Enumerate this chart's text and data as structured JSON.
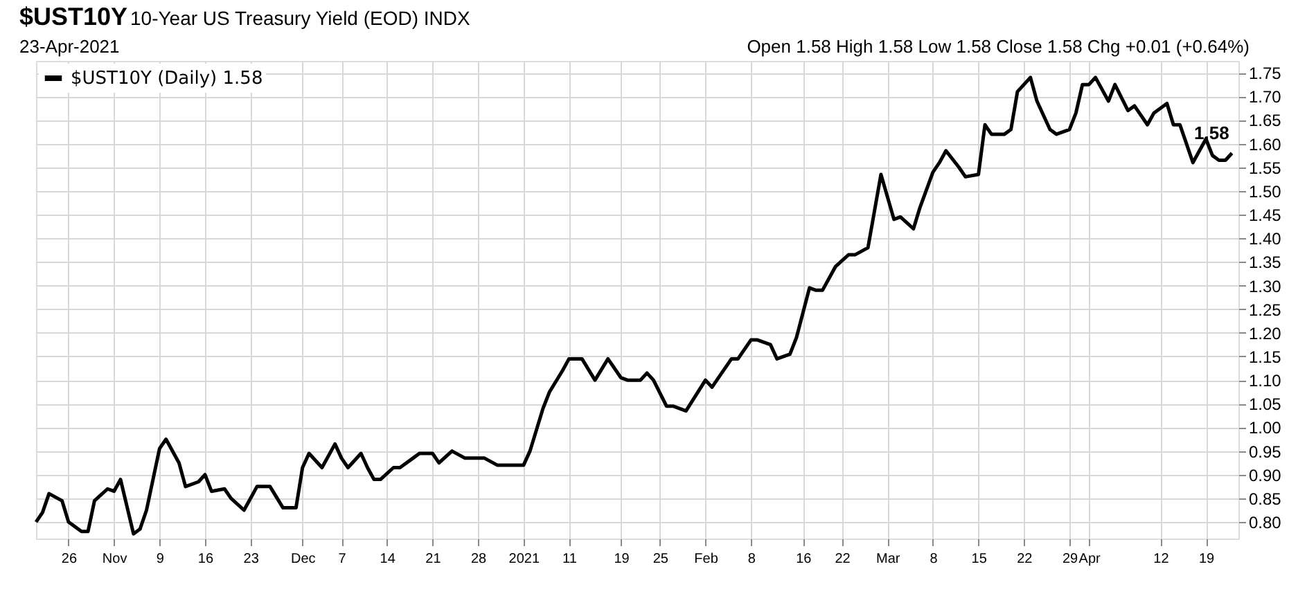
{
  "chart_data": {
    "type": "line",
    "title": "$UST10Y",
    "subtitle": "10-Year US Treasury Yield (EOD) INDX",
    "annotations": [
      "23-Apr-2021",
      "Open 1.58  High 1.58  Low 1.58  Close 1.58  Chg +0.01 (+0.64%)",
      {
        "text": "1.58",
        "x": "2021-04-23",
        "y": 1.58
      }
    ],
    "x": [
      "2020-10-21",
      "2020-10-22",
      "2020-10-23",
      "2020-10-25",
      "2020-10-26",
      "2020-10-28",
      "2020-10-29",
      "2020-10-30",
      "2020-11-01",
      "2020-11-02",
      "2020-11-03",
      "2020-11-05",
      "2020-11-06",
      "2020-11-07",
      "2020-11-09",
      "2020-11-10",
      "2020-11-12",
      "2020-11-13",
      "2020-11-15",
      "2020-11-16",
      "2020-11-17",
      "2020-11-19",
      "2020-11-20",
      "2020-11-22",
      "2020-11-23",
      "2020-11-24",
      "2020-11-26",
      "2020-11-28",
      "2020-11-30",
      "2020-12-01",
      "2020-12-02",
      "2020-12-04",
      "2020-12-06",
      "2020-12-07",
      "2020-12-08",
      "2020-12-10",
      "2020-12-11",
      "2020-12-12",
      "2020-12-13",
      "2020-12-15",
      "2020-12-16",
      "2020-12-18",
      "2020-12-19",
      "2020-12-21",
      "2020-12-22",
      "2020-12-24",
      "2020-12-26",
      "2020-12-29",
      "2020-12-31",
      "2021-01-04",
      "2021-01-05",
      "2021-01-07",
      "2021-01-08",
      "2021-01-10",
      "2021-01-11",
      "2021-01-13",
      "2021-01-15",
      "2021-01-17",
      "2021-01-19",
      "2021-01-20",
      "2021-01-22",
      "2021-01-23",
      "2021-01-24",
      "2021-01-26",
      "2021-01-27",
      "2021-01-29",
      "2021-02-01",
      "2021-02-02",
      "2021-02-05",
      "2021-02-06",
      "2021-02-08",
      "2021-02-09",
      "2021-02-11",
      "2021-02-12",
      "2021-02-14",
      "2021-02-15",
      "2021-02-17",
      "2021-02-18",
      "2021-02-19",
      "2021-02-21",
      "2021-02-23",
      "2021-02-24",
      "2021-02-26",
      "2021-02-28",
      "2021-03-02",
      "2021-03-03",
      "2021-03-05",
      "2021-03-06",
      "2021-03-08",
      "2021-03-09",
      "2021-03-10",
      "2021-03-12",
      "2021-03-13",
      "2021-03-15",
      "2021-03-16",
      "2021-03-17",
      "2021-03-19",
      "2021-03-20",
      "2021-03-21",
      "2021-03-23",
      "2021-03-24",
      "2021-03-26",
      "2021-03-27",
      "2021-03-29",
      "2021-03-30",
      "2021-03-31",
      "2021-04-01",
      "2021-04-02",
      "2021-04-04",
      "2021-04-05",
      "2021-04-07",
      "2021-04-08",
      "2021-04-10",
      "2021-04-11",
      "2021-04-13",
      "2021-04-14",
      "2021-04-15",
      "2021-04-17",
      "2021-04-18",
      "2021-04-19",
      "2021-04-20",
      "2021-04-21",
      "2021-04-22",
      "2021-04-23"
    ],
    "series": [
      {
        "name": "$UST10Y (Daily) 1.58",
        "color": "#000000",
        "values": [
          0.8,
          0.82,
          0.86,
          0.845,
          0.8,
          0.78,
          0.78,
          0.845,
          0.87,
          0.865,
          0.89,
          0.775,
          0.785,
          0.825,
          0.955,
          0.975,
          0.925,
          0.875,
          0.885,
          0.9,
          0.865,
          0.87,
          0.85,
          0.825,
          0.85,
          0.875,
          0.875,
          0.83,
          0.83,
          0.915,
          0.945,
          0.915,
          0.965,
          0.935,
          0.915,
          0.945,
          0.915,
          0.89,
          0.89,
          0.915,
          0.915,
          0.935,
          0.945,
          0.945,
          0.925,
          0.95,
          0.935,
          0.935,
          0.92,
          0.92,
          0.95,
          1.04,
          1.075,
          1.12,
          1.145,
          1.145,
          1.1,
          1.145,
          1.105,
          1.1,
          1.1,
          1.115,
          1.1,
          1.045,
          1.045,
          1.035,
          1.1,
          1.085,
          1.145,
          1.145,
          1.185,
          1.185,
          1.175,
          1.145,
          1.155,
          1.19,
          1.295,
          1.29,
          1.29,
          1.34,
          1.365,
          1.365,
          1.38,
          1.535,
          1.44,
          1.445,
          1.42,
          1.465,
          1.54,
          1.56,
          1.585,
          1.55,
          1.53,
          1.535,
          1.64,
          1.62,
          1.62,
          1.63,
          1.71,
          1.74,
          1.69,
          1.63,
          1.62,
          1.63,
          1.665,
          1.725,
          1.725,
          1.74,
          1.69,
          1.725,
          1.67,
          1.68,
          1.64,
          1.665,
          1.685,
          1.64,
          1.64,
          1.56,
          1.585,
          1.61,
          1.575,
          1.565,
          1.565,
          1.58
        ]
      }
    ],
    "xlim": [
      "2020-10-21",
      "2021-04-24"
    ],
    "xticks": [
      {
        "value": "2020-10-26",
        "label": "26"
      },
      {
        "value": "2020-11-02",
        "label": "Nov"
      },
      {
        "value": "2020-11-09",
        "label": "9"
      },
      {
        "value": "2020-11-16",
        "label": "16"
      },
      {
        "value": "2020-11-23",
        "label": "23"
      },
      {
        "value": "2020-12-01",
        "label": "Dec"
      },
      {
        "value": "2020-12-07",
        "label": "7"
      },
      {
        "value": "2020-12-14",
        "label": "14"
      },
      {
        "value": "2020-12-21",
        "label": "21"
      },
      {
        "value": "2020-12-28",
        "label": "28"
      },
      {
        "value": "2021-01-04",
        "label": "2021"
      },
      {
        "value": "2021-01-11",
        "label": "11"
      },
      {
        "value": "2021-01-19",
        "label": "19"
      },
      {
        "value": "2021-01-25",
        "label": "25"
      },
      {
        "value": "2021-02-01",
        "label": "Feb"
      },
      {
        "value": "2021-02-08",
        "label": "8"
      },
      {
        "value": "2021-02-16",
        "label": "16"
      },
      {
        "value": "2021-02-22",
        "label": "22"
      },
      {
        "value": "2021-03-01",
        "label": "Mar"
      },
      {
        "value": "2021-03-08",
        "label": "8"
      },
      {
        "value": "2021-03-15",
        "label": "15"
      },
      {
        "value": "2021-03-22",
        "label": "22"
      },
      {
        "value": "2021-03-29",
        "label": "29"
      },
      {
        "value": "2021-04-01",
        "label": "Apr"
      },
      {
        "value": "2021-04-12",
        "label": "12"
      },
      {
        "value": "2021-04-19",
        "label": "19"
      }
    ],
    "ylim": [
      0.765,
      1.775
    ],
    "yticks": [
      {
        "value": 0.8,
        "label": "0.80"
      },
      {
        "value": 0.85,
        "label": "0.85"
      },
      {
        "value": 0.9,
        "label": "0.90"
      },
      {
        "value": 0.95,
        "label": "0.95"
      },
      {
        "value": 1.0,
        "label": "1.00"
      },
      {
        "value": 1.05,
        "label": "1.05"
      },
      {
        "value": 1.1,
        "label": "1.10"
      },
      {
        "value": 1.15,
        "label": "1.15"
      },
      {
        "value": 1.2,
        "label": "1.20"
      },
      {
        "value": 1.25,
        "label": "1.25"
      },
      {
        "value": 1.3,
        "label": "1.30"
      },
      {
        "value": 1.35,
        "label": "1.35"
      },
      {
        "value": 1.4,
        "label": "1.40"
      },
      {
        "value": 1.45,
        "label": "1.45"
      },
      {
        "value": 1.5,
        "label": "1.50"
      },
      {
        "value": 1.55,
        "label": "1.55"
      },
      {
        "value": 1.6,
        "label": "1.60"
      },
      {
        "value": 1.65,
        "label": "1.65"
      },
      {
        "value": 1.7,
        "label": "1.70"
      },
      {
        "value": 1.75,
        "label": "1.75"
      }
    ],
    "grid": true,
    "legend": "top left",
    "marker": "none",
    "line_style": "solid"
  }
}
